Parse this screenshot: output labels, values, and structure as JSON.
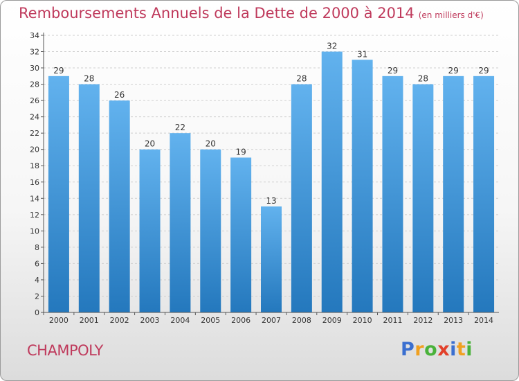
{
  "title": "Remboursements Annuels de la Dette de 2000 à 2014",
  "subtitle": "(en milliers d'€)",
  "location": "CHAMPOLY",
  "brand": {
    "text": "Proxiti",
    "letters": [
      {
        "ch": "P",
        "color": "#3a6fd0"
      },
      {
        "ch": "r",
        "color": "#f0a020"
      },
      {
        "ch": "o",
        "color": "#49b23a"
      },
      {
        "ch": "x",
        "color": "#e2402a"
      },
      {
        "ch": "i",
        "color": "#3a6fd0"
      },
      {
        "ch": "t",
        "color": "#f0a020"
      },
      {
        "ch": "i",
        "color": "#49b23a"
      }
    ]
  },
  "colors": {
    "bar_top": "#62b2ee",
    "bar_bottom": "#2478bd",
    "text_accent": "#bf3a5c",
    "grid": "#cfcfcf",
    "axis": "#555555"
  },
  "chart_data": {
    "type": "bar",
    "categories": [
      "2000",
      "2001",
      "2002",
      "2003",
      "2004",
      "2005",
      "2006",
      "2007",
      "2008",
      "2009",
      "2010",
      "2011",
      "2012",
      "2013",
      "2014"
    ],
    "values": [
      29,
      28,
      26,
      20,
      22,
      20,
      19,
      13,
      28,
      32,
      31,
      29,
      28,
      29,
      29
    ],
    "title": "Remboursements Annuels de la Dette de 2000 à 2014",
    "ylim": [
      0,
      34
    ],
    "yticks": [
      0,
      2,
      4,
      6,
      8,
      10,
      12,
      14,
      16,
      18,
      20,
      22,
      24,
      26,
      28,
      30,
      32,
      34
    ],
    "grid": true,
    "data_labels": true
  }
}
